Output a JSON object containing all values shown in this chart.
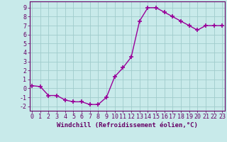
{
  "x": [
    0,
    1,
    2,
    3,
    4,
    5,
    6,
    7,
    8,
    9,
    10,
    11,
    12,
    13,
    14,
    15,
    16,
    17,
    18,
    19,
    20,
    21,
    22,
    23
  ],
  "y": [
    0.3,
    0.2,
    -0.8,
    -0.8,
    -1.3,
    -1.5,
    -1.5,
    -1.8,
    -1.8,
    -1.0,
    1.3,
    2.3,
    3.5,
    7.5,
    9.0,
    9.0,
    8.5,
    8.0,
    7.5,
    7.0,
    6.5,
    7.0,
    7.0,
    7.0
  ],
  "line_color": "#990099",
  "marker": "+",
  "marker_size": 4.0,
  "line_width": 1.0,
  "xlabel": "Windchill (Refroidissement éolien,°C)",
  "ylabel": "",
  "title": "",
  "xlim": [
    -0.3,
    23.3
  ],
  "ylim": [
    -2.5,
    9.7
  ],
  "yticks": [
    -2,
    -1,
    0,
    1,
    2,
    3,
    4,
    5,
    6,
    7,
    8,
    9
  ],
  "xticks": [
    0,
    1,
    2,
    3,
    4,
    5,
    6,
    7,
    8,
    9,
    10,
    11,
    12,
    13,
    14,
    15,
    16,
    17,
    18,
    19,
    20,
    21,
    22,
    23
  ],
  "xtick_labels": [
    "0",
    "1",
    "2",
    "3",
    "4",
    "5",
    "6",
    "7",
    "8",
    "9",
    "10",
    "11",
    "12",
    "13",
    "14",
    "15",
    "16",
    "17",
    "18",
    "19",
    "20",
    "21",
    "22",
    "23"
  ],
  "background_color": "#c8eaea",
  "grid_color": "#a0cccc",
  "tick_color": "#660066",
  "label_color": "#660066",
  "xlabel_fontsize": 6.5,
  "tick_fontsize": 6.0,
  "marker_color": "#990099"
}
